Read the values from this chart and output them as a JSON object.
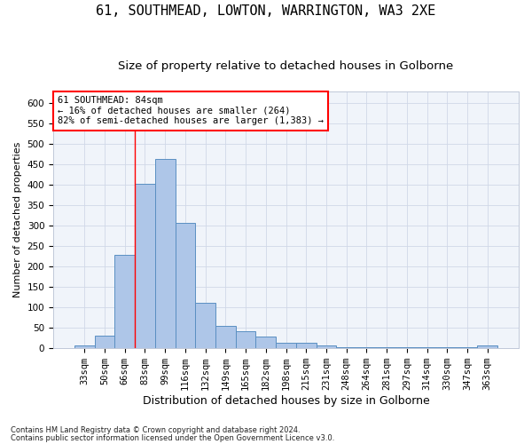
{
  "title1": "61, SOUTHMEAD, LOWTON, WARRINGTON, WA3 2XE",
  "title2": "Size of property relative to detached houses in Golborne",
  "xlabel": "Distribution of detached houses by size in Golborne",
  "ylabel": "Number of detached properties",
  "annotation_title": "61 SOUTHMEAD: 84sqm",
  "annotation_line1": "← 16% of detached houses are smaller (264)",
  "annotation_line2": "82% of semi-detached houses are larger (1,383) →",
  "footer1": "Contains HM Land Registry data © Crown copyright and database right 2024.",
  "footer2": "Contains public sector information licensed under the Open Government Licence v3.0.",
  "bar_labels": [
    "33sqm",
    "50sqm",
    "66sqm",
    "83sqm",
    "99sqm",
    "116sqm",
    "132sqm",
    "149sqm",
    "165sqm",
    "182sqm",
    "198sqm",
    "215sqm",
    "231sqm",
    "248sqm",
    "264sqm",
    "281sqm",
    "297sqm",
    "314sqm",
    "330sqm",
    "347sqm",
    "363sqm"
  ],
  "bar_values": [
    7,
    30,
    228,
    403,
    463,
    307,
    110,
    54,
    40,
    27,
    13,
    12,
    5,
    2,
    2,
    2,
    2,
    2,
    2,
    2,
    7
  ],
  "bar_color": "#aec6e8",
  "bar_edge_color": "#5a8fc2",
  "ylim": [
    0,
    630
  ],
  "yticks": [
    0,
    50,
    100,
    150,
    200,
    250,
    300,
    350,
    400,
    450,
    500,
    550,
    600
  ],
  "title1_fontsize": 11,
  "title2_fontsize": 9.5,
  "xlabel_fontsize": 9,
  "ylabel_fontsize": 8,
  "tick_fontsize": 7.5,
  "footer_fontsize": 6,
  "annotation_fontsize": 7.5
}
